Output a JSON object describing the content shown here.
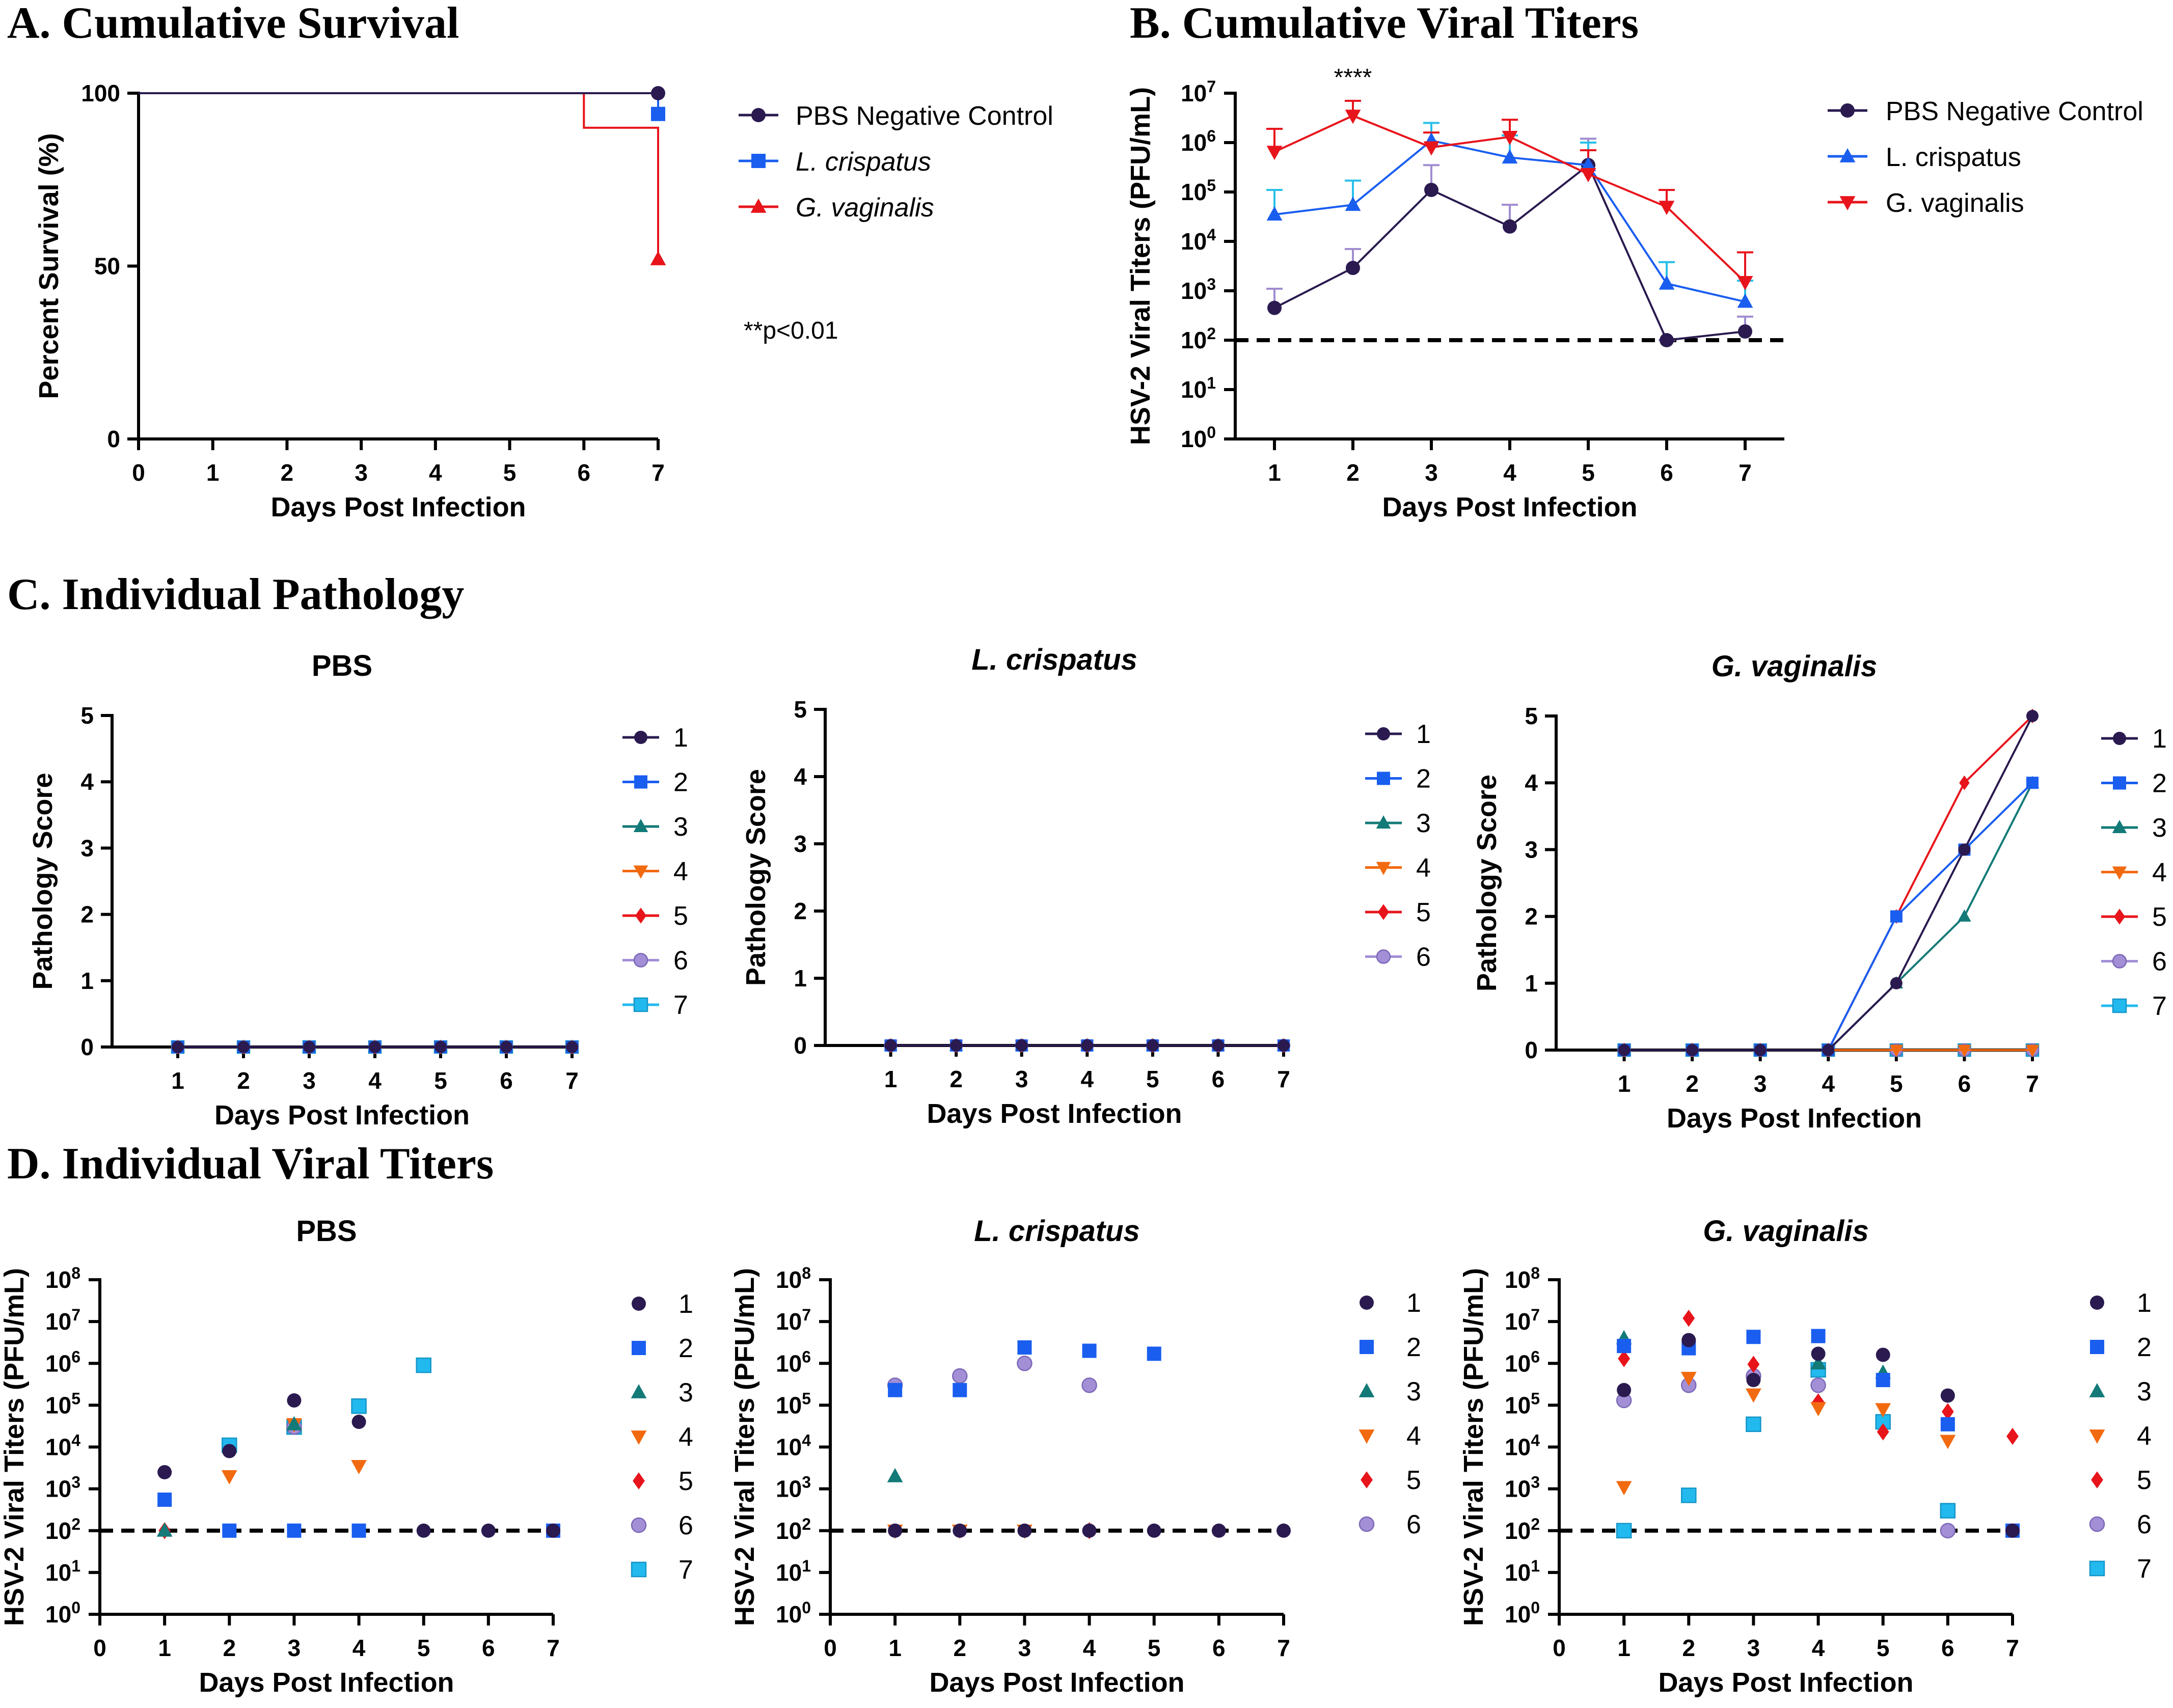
{
  "figure": {
    "panels": [
      {
        "id": "A",
        "title": "A. Cumulative Survival"
      },
      {
        "id": "B",
        "title": "B. Cumulative Viral Titers"
      },
      {
        "id": "C",
        "title": "C. Individual Pathology"
      },
      {
        "id": "D",
        "title": "D. Individual Viral Titers"
      }
    ]
  },
  "chart_data": [
    {
      "id": "A",
      "type": "line",
      "style": "step",
      "title": "A. Cumulative Survival",
      "xlabel": "Days Post Infection",
      "ylabel": "Percent Survival  (%)",
      "xlim": [
        0,
        7
      ],
      "ylim": [
        0,
        100
      ],
      "xticks": [
        "0",
        "1",
        "2",
        "3",
        "4",
        "5",
        "6",
        "7"
      ],
      "yticks": [
        "0",
        "50",
        "100"
      ],
      "annotation": "**p<0.01",
      "legend_position": "right",
      "series": [
        {
          "name": "PBS Negative Control",
          "italic": false,
          "color": "#2a1a4f",
          "marker": "circle",
          "x": [
            0,
            7
          ],
          "y": [
            100,
            100
          ]
        },
        {
          "name": "L. crispatus",
          "italic": true,
          "color": "#1a5ef0",
          "marker": "square",
          "x": [
            0,
            7
          ],
          "y": [
            100,
            94
          ]
        },
        {
          "name": "G. vaginalis",
          "italic": true,
          "color": "#e8141b",
          "marker": "triangle",
          "x": [
            0,
            6,
            7
          ],
          "y": [
            100,
            90,
            52
          ]
        }
      ]
    },
    {
      "id": "B",
      "type": "line",
      "title": "B. Cumulative Viral Titers",
      "xlabel": "Days Post Infection",
      "ylabel": "HSV-2 Viral Titers (PFU/mL)",
      "yscale": "log",
      "xlim": [
        0.5,
        7.5
      ],
      "ylim_exp": [
        0,
        7
      ],
      "xticks": [
        "1",
        "2",
        "3",
        "4",
        "5",
        "6",
        "7"
      ],
      "ytick_base": "10",
      "ytick_exps": [
        "0",
        "1",
        "2",
        "3",
        "4",
        "5",
        "6",
        "7"
      ],
      "limit_of_detection": 100,
      "annotation": "****",
      "annotation_day": 2,
      "legend_position": "right",
      "series": [
        {
          "name": "PBS Negative Control",
          "color": "#2a1a4f",
          "errcolor": "#a08cd0",
          "marker": "circle",
          "x": [
            1,
            2,
            3,
            4,
            5,
            6,
            7
          ],
          "y": [
            450,
            2900,
            110000,
            20000,
            350000,
            100,
            150
          ],
          "err": [
            1100,
            7000,
            350000,
            55000,
            1200000,
            100,
            300
          ]
        },
        {
          "name": "L. crispatus",
          "color": "#1a5ef0",
          "errcolor": "#28c0e8",
          "marker": "triangle",
          "x": [
            1,
            2,
            3,
            4,
            5,
            6,
            7
          ],
          "y": [
            35000,
            55000,
            1100000,
            500000,
            350000,
            1400,
            600
          ],
          "err": [
            110000,
            170000,
            2500000,
            1400000,
            1000000,
            3800,
            1600
          ]
        },
        {
          "name": "G. vaginalis",
          "color": "#e8141b",
          "errcolor": "#e8141b",
          "marker": "triangle-down",
          "x": [
            1,
            2,
            3,
            4,
            5,
            6,
            7
          ],
          "y": [
            650000,
            3500000,
            800000,
            1300000,
            230000,
            50000,
            1500
          ],
          "err": [
            1900000,
            7000000,
            1600000,
            2900000,
            700000,
            110000,
            6000
          ]
        }
      ]
    },
    {
      "id": "C-PBS",
      "type": "line",
      "title": "PBS",
      "italic": false,
      "xlabel": "Days Post Infection",
      "ylabel": "Pathology Score",
      "xlim": [
        0,
        7
      ],
      "ylim": [
        0,
        5
      ],
      "xticks": [
        "1",
        "2",
        "3",
        "4",
        "5",
        "6",
        "7"
      ],
      "yticks": [
        "0",
        "1",
        "2",
        "3",
        "4",
        "5"
      ],
      "legend": [
        "1",
        "2",
        "3",
        "4",
        "5",
        "6",
        "7"
      ],
      "series": [
        {
          "name": "1",
          "x": [
            1,
            2,
            3,
            4,
            5,
            6,
            7
          ],
          "y": [
            0,
            0,
            0,
            0,
            0,
            0,
            0
          ]
        },
        {
          "name": "2",
          "x": [
            1,
            2,
            3,
            4,
            5,
            6,
            7
          ],
          "y": [
            0,
            0,
            0,
            0,
            0,
            0,
            0
          ]
        },
        {
          "name": "3",
          "x": [
            1,
            2,
            3,
            4,
            5,
            6,
            7
          ],
          "y": [
            0,
            0,
            0,
            0,
            0,
            0,
            0
          ]
        },
        {
          "name": "4",
          "x": [
            1,
            2,
            3,
            4,
            5,
            6,
            7
          ],
          "y": [
            0,
            0,
            0,
            0,
            0,
            0,
            0
          ]
        },
        {
          "name": "5",
          "x": [
            1,
            2,
            3,
            4,
            5,
            6,
            7
          ],
          "y": [
            0,
            0,
            0,
            0,
            0,
            0,
            0
          ]
        },
        {
          "name": "6",
          "x": [
            1,
            2,
            3,
            4,
            5,
            6,
            7
          ],
          "y": [
            0,
            0,
            0,
            0,
            0,
            0,
            0
          ]
        },
        {
          "name": "7",
          "x": [
            1,
            2,
            3,
            4,
            5,
            6,
            7
          ],
          "y": [
            0,
            0,
            0,
            0,
            0,
            0,
            0
          ]
        }
      ]
    },
    {
      "id": "C-Lcr",
      "type": "line",
      "title": "L. crispatus",
      "italic": true,
      "xlabel": "Days Post Infection",
      "ylabel": "Pathology Score",
      "xlim": [
        0,
        7
      ],
      "ylim": [
        0,
        5
      ],
      "xticks": [
        "1",
        "2",
        "3",
        "4",
        "5",
        "6",
        "7"
      ],
      "yticks": [
        "0",
        "1",
        "2",
        "3",
        "4",
        "5"
      ],
      "legend": [
        "1",
        "2",
        "3",
        "4",
        "5",
        "6"
      ],
      "series": [
        {
          "name": "1",
          "x": [
            1,
            2,
            3,
            4,
            5,
            6,
            7
          ],
          "y": [
            0,
            0,
            0,
            0,
            0,
            0,
            0
          ]
        },
        {
          "name": "2",
          "x": [
            1,
            2,
            3,
            4,
            5,
            6,
            7
          ],
          "y": [
            0,
            0,
            0,
            0,
            0,
            0,
            0
          ]
        },
        {
          "name": "3",
          "x": [
            1,
            2,
            3,
            4,
            5,
            6,
            7
          ],
          "y": [
            0,
            0,
            0,
            0,
            0,
            0,
            0
          ]
        },
        {
          "name": "4",
          "x": [
            1,
            2,
            3,
            4,
            5,
            6,
            7
          ],
          "y": [
            0,
            0,
            0,
            0,
            0,
            0,
            0
          ]
        },
        {
          "name": "5",
          "x": [
            1,
            2,
            3,
            4,
            5,
            6,
            7
          ],
          "y": [
            0,
            0,
            0,
            0,
            0,
            0,
            0
          ]
        },
        {
          "name": "6",
          "x": [
            1,
            2,
            3,
            4,
            5,
            6,
            7
          ],
          "y": [
            0,
            0,
            0,
            0,
            0,
            0,
            0
          ]
        }
      ]
    },
    {
      "id": "C-Gv",
      "type": "line",
      "title": "G. vaginalis",
      "italic": true,
      "xlabel": "Days Post Infection",
      "ylabel": "Pathology Score",
      "xlim": [
        0,
        7
      ],
      "ylim": [
        0,
        5
      ],
      "xticks": [
        "1",
        "2",
        "3",
        "4",
        "5",
        "6",
        "7"
      ],
      "yticks": [
        "0",
        "1",
        "2",
        "3",
        "4",
        "5"
      ],
      "legend": [
        "1",
        "2",
        "3",
        "4",
        "5",
        "6",
        "7"
      ],
      "series": [
        {
          "name": "1",
          "x": [
            1,
            2,
            3,
            4,
            5,
            6,
            7
          ],
          "y": [
            0,
            0,
            0,
            0,
            1,
            3,
            5
          ]
        },
        {
          "name": "2",
          "x": [
            1,
            2,
            3,
            4,
            5,
            6,
            7
          ],
          "y": [
            0,
            0,
            0,
            0,
            2,
            3,
            4
          ]
        },
        {
          "name": "3",
          "x": [
            1,
            2,
            3,
            4,
            5,
            6,
            7
          ],
          "y": [
            0,
            0,
            0,
            0,
            1,
            2,
            4
          ]
        },
        {
          "name": "4",
          "x": [
            1,
            2,
            3,
            4,
            5,
            6,
            7
          ],
          "y": [
            0,
            0,
            0,
            0,
            0,
            0,
            0
          ]
        },
        {
          "name": "5",
          "x": [
            1,
            2,
            3,
            4,
            5,
            6,
            7
          ],
          "y": [
            0,
            0,
            0,
            0,
            2,
            4,
            5
          ]
        },
        {
          "name": "6",
          "x": [
            1,
            2,
            3,
            4,
            5,
            6,
            7
          ],
          "y": [
            0,
            0,
            0,
            0,
            0,
            0,
            0
          ]
        },
        {
          "name": "7",
          "x": [
            1,
            2,
            3,
            4,
            5,
            6,
            7
          ],
          "y": [
            0,
            0,
            0,
            0,
            0,
            0,
            0
          ]
        }
      ]
    },
    {
      "id": "D-PBS",
      "type": "scatter",
      "title": "PBS",
      "italic": false,
      "xlabel": "Days Post Infection",
      "ylabel": "HSV-2 Viral Titers (PFU/mL)",
      "yscale": "log",
      "xlim": [
        0,
        7
      ],
      "ylim_exp": [
        0,
        8
      ],
      "xticks": [
        "0",
        "1",
        "2",
        "3",
        "4",
        "5",
        "6",
        "7"
      ],
      "ytick_base": "10",
      "ytick_exps": [
        "0",
        "1",
        "2",
        "3",
        "4",
        "5",
        "6",
        "7",
        "8"
      ],
      "limit_of_detection": 100,
      "legend": [
        "1",
        "2",
        "3",
        "4",
        "5",
        "6",
        "7"
      ],
      "series": [
        {
          "name": "1",
          "x": [
            1,
            2,
            3,
            4,
            5,
            6,
            7
          ],
          "y": [
            2500,
            8000,
            130000,
            40000,
            100,
            100,
            100
          ]
        },
        {
          "name": "2",
          "x": [
            1,
            2,
            3,
            4,
            7
          ],
          "y": [
            550,
            100,
            100,
            100,
            100
          ]
        },
        {
          "name": "3",
          "x": [
            1,
            3
          ],
          "y": [
            100,
            35000
          ]
        },
        {
          "name": "4",
          "x": [
            2,
            3,
            4
          ],
          "y": [
            2000,
            35000,
            3500
          ]
        },
        {
          "name": "5",
          "x": [
            1
          ],
          "y": [
            100
          ]
        },
        {
          "name": "6",
          "x": [
            3
          ],
          "y": [
            30000
          ]
        },
        {
          "name": "7",
          "x": [
            2,
            3,
            4,
            5
          ],
          "y": [
            11000,
            30000,
            95000,
            900000
          ]
        }
      ]
    },
    {
      "id": "D-Lcr",
      "type": "scatter",
      "title": "L. crispatus",
      "italic": true,
      "xlabel": "Days Post Infection",
      "ylabel": "HSV-2 Viral Titers (PFU/mL)",
      "yscale": "log",
      "xlim": [
        0,
        7
      ],
      "ylim_exp": [
        0,
        8
      ],
      "xticks": [
        "0",
        "1",
        "2",
        "3",
        "4",
        "5",
        "6",
        "7"
      ],
      "ytick_base": "10",
      "ytick_exps": [
        "0",
        "1",
        "2",
        "3",
        "4",
        "5",
        "6",
        "7",
        "8"
      ],
      "limit_of_detection": 100,
      "legend": [
        "1",
        "2",
        "3",
        "4",
        "5",
        "6"
      ],
      "series": [
        {
          "name": "1",
          "x": [
            1,
            2,
            3,
            4,
            5,
            6,
            7
          ],
          "y": [
            100,
            100,
            100,
            100,
            100,
            100,
            100
          ]
        },
        {
          "name": "2",
          "x": [
            1,
            2,
            3,
            4,
            5
          ],
          "y": [
            230000,
            230000,
            2400000,
            2000000,
            1700000
          ]
        },
        {
          "name": "3",
          "x": [
            1
          ],
          "y": [
            2000
          ]
        },
        {
          "name": "4",
          "x": [
            1,
            2,
            3
          ],
          "y": [
            100,
            100,
            100
          ]
        },
        {
          "name": "5",
          "x": [
            4
          ],
          "y": [
            100
          ]
        },
        {
          "name": "6",
          "x": [
            1,
            2,
            3,
            4
          ],
          "y": [
            300000,
            500000,
            1000000,
            300000
          ]
        }
      ]
    },
    {
      "id": "D-Gv",
      "type": "scatter",
      "title": "G. vaginalis",
      "italic": true,
      "xlabel": "Days Post Infection",
      "ylabel": "HSV-2 Viral Titers (PFU/mL)",
      "yscale": "log",
      "xlim": [
        0,
        7
      ],
      "ylim_exp": [
        0,
        8
      ],
      "xticks": [
        "0",
        "1",
        "2",
        "3",
        "4",
        "5",
        "6",
        "7"
      ],
      "ytick_base": "10",
      "ytick_exps": [
        "0",
        "1",
        "2",
        "3",
        "4",
        "5",
        "6",
        "7",
        "8"
      ],
      "limit_of_detection": 100,
      "legend": [
        "1",
        "2",
        "3",
        "4",
        "5",
        "6",
        "7"
      ],
      "series": [
        {
          "name": "1",
          "x": [
            1,
            2,
            3,
            4,
            5,
            6,
            7
          ],
          "y": [
            230000,
            3600000,
            400000,
            1700000,
            1600000,
            170000,
            100
          ]
        },
        {
          "name": "2",
          "x": [
            1,
            2,
            3,
            4,
            5,
            6,
            7
          ],
          "y": [
            2600000,
            2300000,
            4300000,
            4500000,
            400000,
            35000,
            100
          ]
        },
        {
          "name": "3",
          "x": [
            1,
            4,
            5
          ],
          "y": [
            4000000,
            1000000,
            600000
          ]
        },
        {
          "name": "4",
          "x": [
            1,
            2,
            3,
            4,
            5,
            6
          ],
          "y": [
            1100,
            450000,
            180000,
            85000,
            80000,
            14000
          ]
        },
        {
          "name": "5",
          "x": [
            1,
            2,
            3,
            4,
            5,
            6,
            7
          ],
          "y": [
            1300000,
            12000000,
            950000,
            120000,
            23000,
            70000,
            18000
          ]
        },
        {
          "name": "6",
          "x": [
            1,
            2,
            3,
            4,
            6
          ],
          "y": [
            130000,
            300000,
            500000,
            300000,
            100
          ]
        },
        {
          "name": "7",
          "x": [
            1,
            2,
            3,
            4,
            5,
            6
          ],
          "y": [
            100,
            700,
            35000,
            700000,
            40000,
            300
          ]
        }
      ]
    }
  ]
}
